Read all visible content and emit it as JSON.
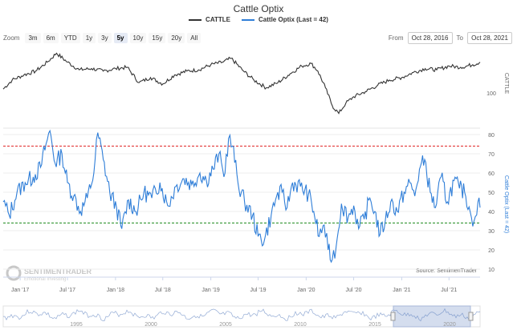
{
  "chart_data": {
    "type": "line",
    "title": "Cattle Optix",
    "legend": {
      "placement": "top-center",
      "items": [
        {
          "name": "CATTLE",
          "color": "#333333"
        },
        {
          "name": "Cattle Optix (Last = 42)",
          "color": "#2f7ed8"
        }
      ]
    },
    "zoom": {
      "label": "Zoom",
      "buttons": [
        "3m",
        "6m",
        "YTD",
        "1y",
        "3y",
        "5y",
        "10y",
        "15y",
        "20y",
        "All"
      ],
      "active": "5y"
    },
    "range": {
      "from_label": "From",
      "from": "Oct 28, 2016",
      "to_label": "To",
      "to": "Oct 28, 2021"
    },
    "x_ticks": [
      "Jan '17",
      "Jul '17",
      "Jan '18",
      "Jul '18",
      "Jan '19",
      "Jul '19",
      "Jan '20",
      "Jul '20",
      "Jan '21",
      "Jul '21"
    ],
    "x_range": [
      "2016-10-28",
      "2021-10-28"
    ],
    "navigator_ticks": [
      "1995",
      "2000",
      "2005",
      "2010",
      "2015",
      "2020"
    ],
    "price_panel": {
      "axis_label": "CATTLE",
      "ticks": [
        100
      ],
      "series": {
        "name": "CATTLE",
        "color": "#333333",
        "points": [
          [
            "2016-10-28",
            103
          ],
          [
            "2016-12-01",
            110
          ],
          [
            "2017-01-15",
            114
          ],
          [
            "2017-03-01",
            117
          ],
          [
            "2017-04-15",
            124
          ],
          [
            "2017-05-20",
            131
          ],
          [
            "2017-07-01",
            124
          ],
          [
            "2017-08-15",
            118
          ],
          [
            "2017-10-01",
            119
          ],
          [
            "2017-11-15",
            117
          ],
          [
            "2018-01-01",
            119
          ],
          [
            "2018-02-15",
            120
          ],
          [
            "2018-04-01",
            108
          ],
          [
            "2018-05-15",
            112
          ],
          [
            "2018-07-01",
            107
          ],
          [
            "2018-08-15",
            114
          ],
          [
            "2018-10-01",
            117
          ],
          [
            "2018-11-15",
            118
          ],
          [
            "2019-01-01",
            122
          ],
          [
            "2019-02-15",
            124
          ],
          [
            "2019-03-20",
            127
          ],
          [
            "2019-05-01",
            118
          ],
          [
            "2019-06-15",
            110
          ],
          [
            "2019-08-01",
            104
          ],
          [
            "2019-09-15",
            108
          ],
          [
            "2019-11-01",
            115
          ],
          [
            "2019-12-15",
            121
          ],
          [
            "2020-01-20",
            123
          ],
          [
            "2020-02-15",
            117
          ],
          [
            "2020-03-15",
            104
          ],
          [
            "2020-04-10",
            90
          ],
          [
            "2020-05-05",
            84
          ],
          [
            "2020-06-01",
            92
          ],
          [
            "2020-07-01",
            97
          ],
          [
            "2020-08-15",
            101
          ],
          [
            "2020-10-01",
            106
          ],
          [
            "2020-11-15",
            110
          ],
          [
            "2021-01-01",
            112
          ],
          [
            "2021-02-15",
            116
          ],
          [
            "2021-04-01",
            119
          ],
          [
            "2021-05-15",
            118
          ],
          [
            "2021-07-01",
            121
          ],
          [
            "2021-08-15",
            120
          ],
          [
            "2021-09-30",
            122
          ],
          [
            "2021-10-28",
            124
          ]
        ]
      }
    },
    "optix_panel": {
      "axis_label": "Cattle Optix (Last = 42)",
      "ylim": [
        10,
        80
      ],
      "ticks": [
        10,
        20,
        30,
        40,
        50,
        60,
        70,
        80
      ],
      "thresholds": [
        {
          "value": 74,
          "color": "#e02020"
        },
        {
          "value": 34,
          "color": "#1a8a1a"
        }
      ],
      "series": {
        "name": "Cattle Optix",
        "color": "#2f7ed8",
        "points": [
          [
            "2016-10-28",
            45
          ],
          [
            "2016-11-20",
            38
          ],
          [
            "2016-12-20",
            50
          ],
          [
            "2017-01-20",
            55
          ],
          [
            "2017-02-20",
            58
          ],
          [
            "2017-03-20",
            63
          ],
          [
            "2017-04-10",
            75
          ],
          [
            "2017-04-25",
            82
          ],
          [
            "2017-05-15",
            65
          ],
          [
            "2017-06-10",
            70
          ],
          [
            "2017-07-01",
            55
          ],
          [
            "2017-07-25",
            48
          ],
          [
            "2017-08-20",
            40
          ],
          [
            "2017-09-15",
            47
          ],
          [
            "2017-10-10",
            60
          ],
          [
            "2017-10-25",
            81
          ],
          [
            "2017-11-15",
            67
          ],
          [
            "2017-12-10",
            50
          ],
          [
            "2018-01-05",
            42
          ],
          [
            "2018-01-25",
            31
          ],
          [
            "2018-02-20",
            46
          ],
          [
            "2018-03-20",
            40
          ],
          [
            "2018-04-20",
            50
          ],
          [
            "2018-05-20",
            47
          ],
          [
            "2018-06-20",
            55
          ],
          [
            "2018-07-20",
            43
          ],
          [
            "2018-08-20",
            53
          ],
          [
            "2018-09-20",
            57
          ],
          [
            "2018-10-20",
            54
          ],
          [
            "2018-11-20",
            60
          ],
          [
            "2018-12-15",
            56
          ],
          [
            "2019-01-10",
            62
          ],
          [
            "2019-02-01",
            70
          ],
          [
            "2019-02-20",
            58
          ],
          [
            "2019-03-10",
            78
          ],
          [
            "2019-03-25",
            74
          ],
          [
            "2019-04-15",
            55
          ],
          [
            "2019-05-10",
            45
          ],
          [
            "2019-06-10",
            38
          ],
          [
            "2019-07-01",
            27
          ],
          [
            "2019-07-25",
            25
          ],
          [
            "2019-08-20",
            38
          ],
          [
            "2019-09-10",
            48
          ],
          [
            "2019-10-01",
            50
          ],
          [
            "2019-10-20",
            42
          ],
          [
            "2019-11-10",
            55
          ],
          [
            "2019-12-10",
            53
          ],
          [
            "2020-01-10",
            49
          ],
          [
            "2020-01-30",
            40
          ],
          [
            "2020-02-20",
            27
          ],
          [
            "2020-03-10",
            33
          ],
          [
            "2020-03-25",
            20
          ],
          [
            "2020-04-10",
            15
          ],
          [
            "2020-04-25",
            22
          ],
          [
            "2020-05-15",
            44
          ],
          [
            "2020-06-10",
            37
          ],
          [
            "2020-07-01",
            43
          ],
          [
            "2020-07-20",
            31
          ],
          [
            "2020-08-10",
            36
          ],
          [
            "2020-09-01",
            47
          ],
          [
            "2020-09-20",
            40
          ],
          [
            "2020-10-10",
            28
          ],
          [
            "2020-10-30",
            35
          ],
          [
            "2020-11-20",
            45
          ],
          [
            "2020-12-15",
            40
          ],
          [
            "2021-01-10",
            50
          ],
          [
            "2021-02-01",
            55
          ],
          [
            "2021-02-20",
            48
          ],
          [
            "2021-03-10",
            62
          ],
          [
            "2021-03-30",
            67
          ],
          [
            "2021-04-20",
            50
          ],
          [
            "2021-05-10",
            42
          ],
          [
            "2021-06-01",
            58
          ],
          [
            "2021-06-25",
            45
          ],
          [
            "2021-07-20",
            56
          ],
          [
            "2021-08-10",
            52
          ],
          [
            "2021-08-30",
            50
          ],
          [
            "2021-09-20",
            40
          ],
          [
            "2021-10-05",
            35
          ],
          [
            "2021-10-20",
            45
          ],
          [
            "2021-10-28",
            42
          ]
        ]
      }
    },
    "credits": "Source: SentimenTrader",
    "watermark": {
      "brand": "SENTIMENTRADER",
      "tagline": "Emotional Investing"
    }
  }
}
